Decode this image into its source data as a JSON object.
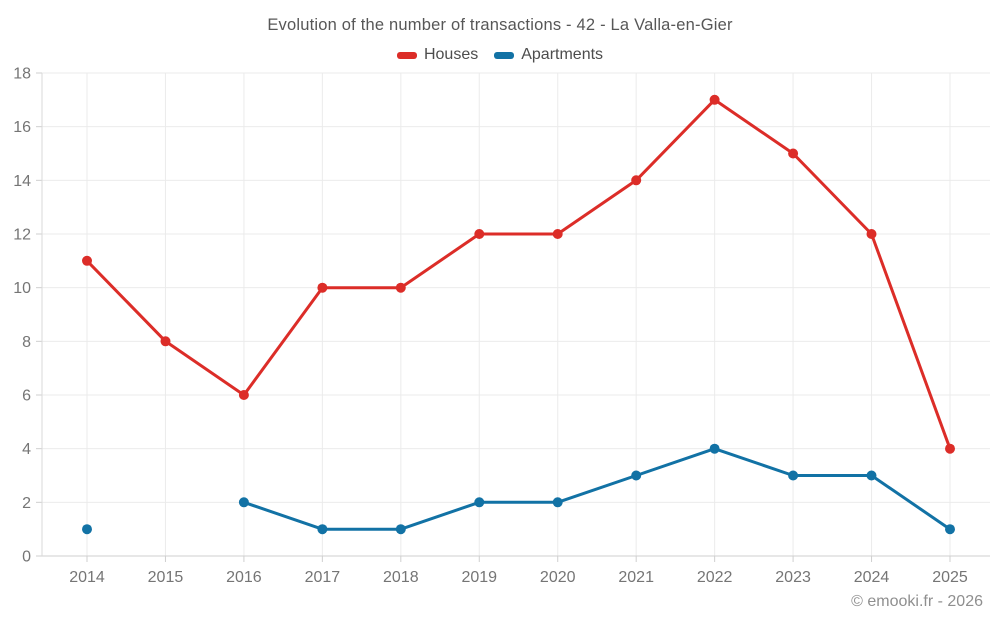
{
  "header": {
    "title": "Evolution of the number of transactions - 42 - La Valla-en-Gier"
  },
  "footer": {
    "credit": "© emooki.fr - 2026"
  },
  "colors": {
    "houses": "#dc2d28",
    "apartments": "#1272a5",
    "grid": "#ebebeb",
    "axis": "#cfcfcf",
    "tick_label": "#757575"
  },
  "chart_data": {
    "type": "line",
    "title": "Evolution of the number of transactions - 42 - La Valla-en-Gier",
    "categories": [
      "2014",
      "2015",
      "2016",
      "2017",
      "2018",
      "2019",
      "2020",
      "2021",
      "2022",
      "2023",
      "2024",
      "2025"
    ],
    "series": [
      {
        "name": "Houses",
        "color": "#dc2d28",
        "values": [
          11,
          8,
          6,
          10,
          10,
          12,
          12,
          14,
          17,
          15,
          12,
          4
        ]
      },
      {
        "name": "Apartments",
        "color": "#1272a5",
        "values": [
          1,
          null,
          2,
          1,
          1,
          2,
          2,
          3,
          4,
          3,
          3,
          1
        ]
      }
    ],
    "xlabel": "",
    "ylabel": "",
    "ylim": [
      0,
      18
    ],
    "ytick_step": 2,
    "grid": true,
    "legend_position": "top",
    "notes": "Apartments value for 2015 is missing (isolated point at 2014)."
  }
}
